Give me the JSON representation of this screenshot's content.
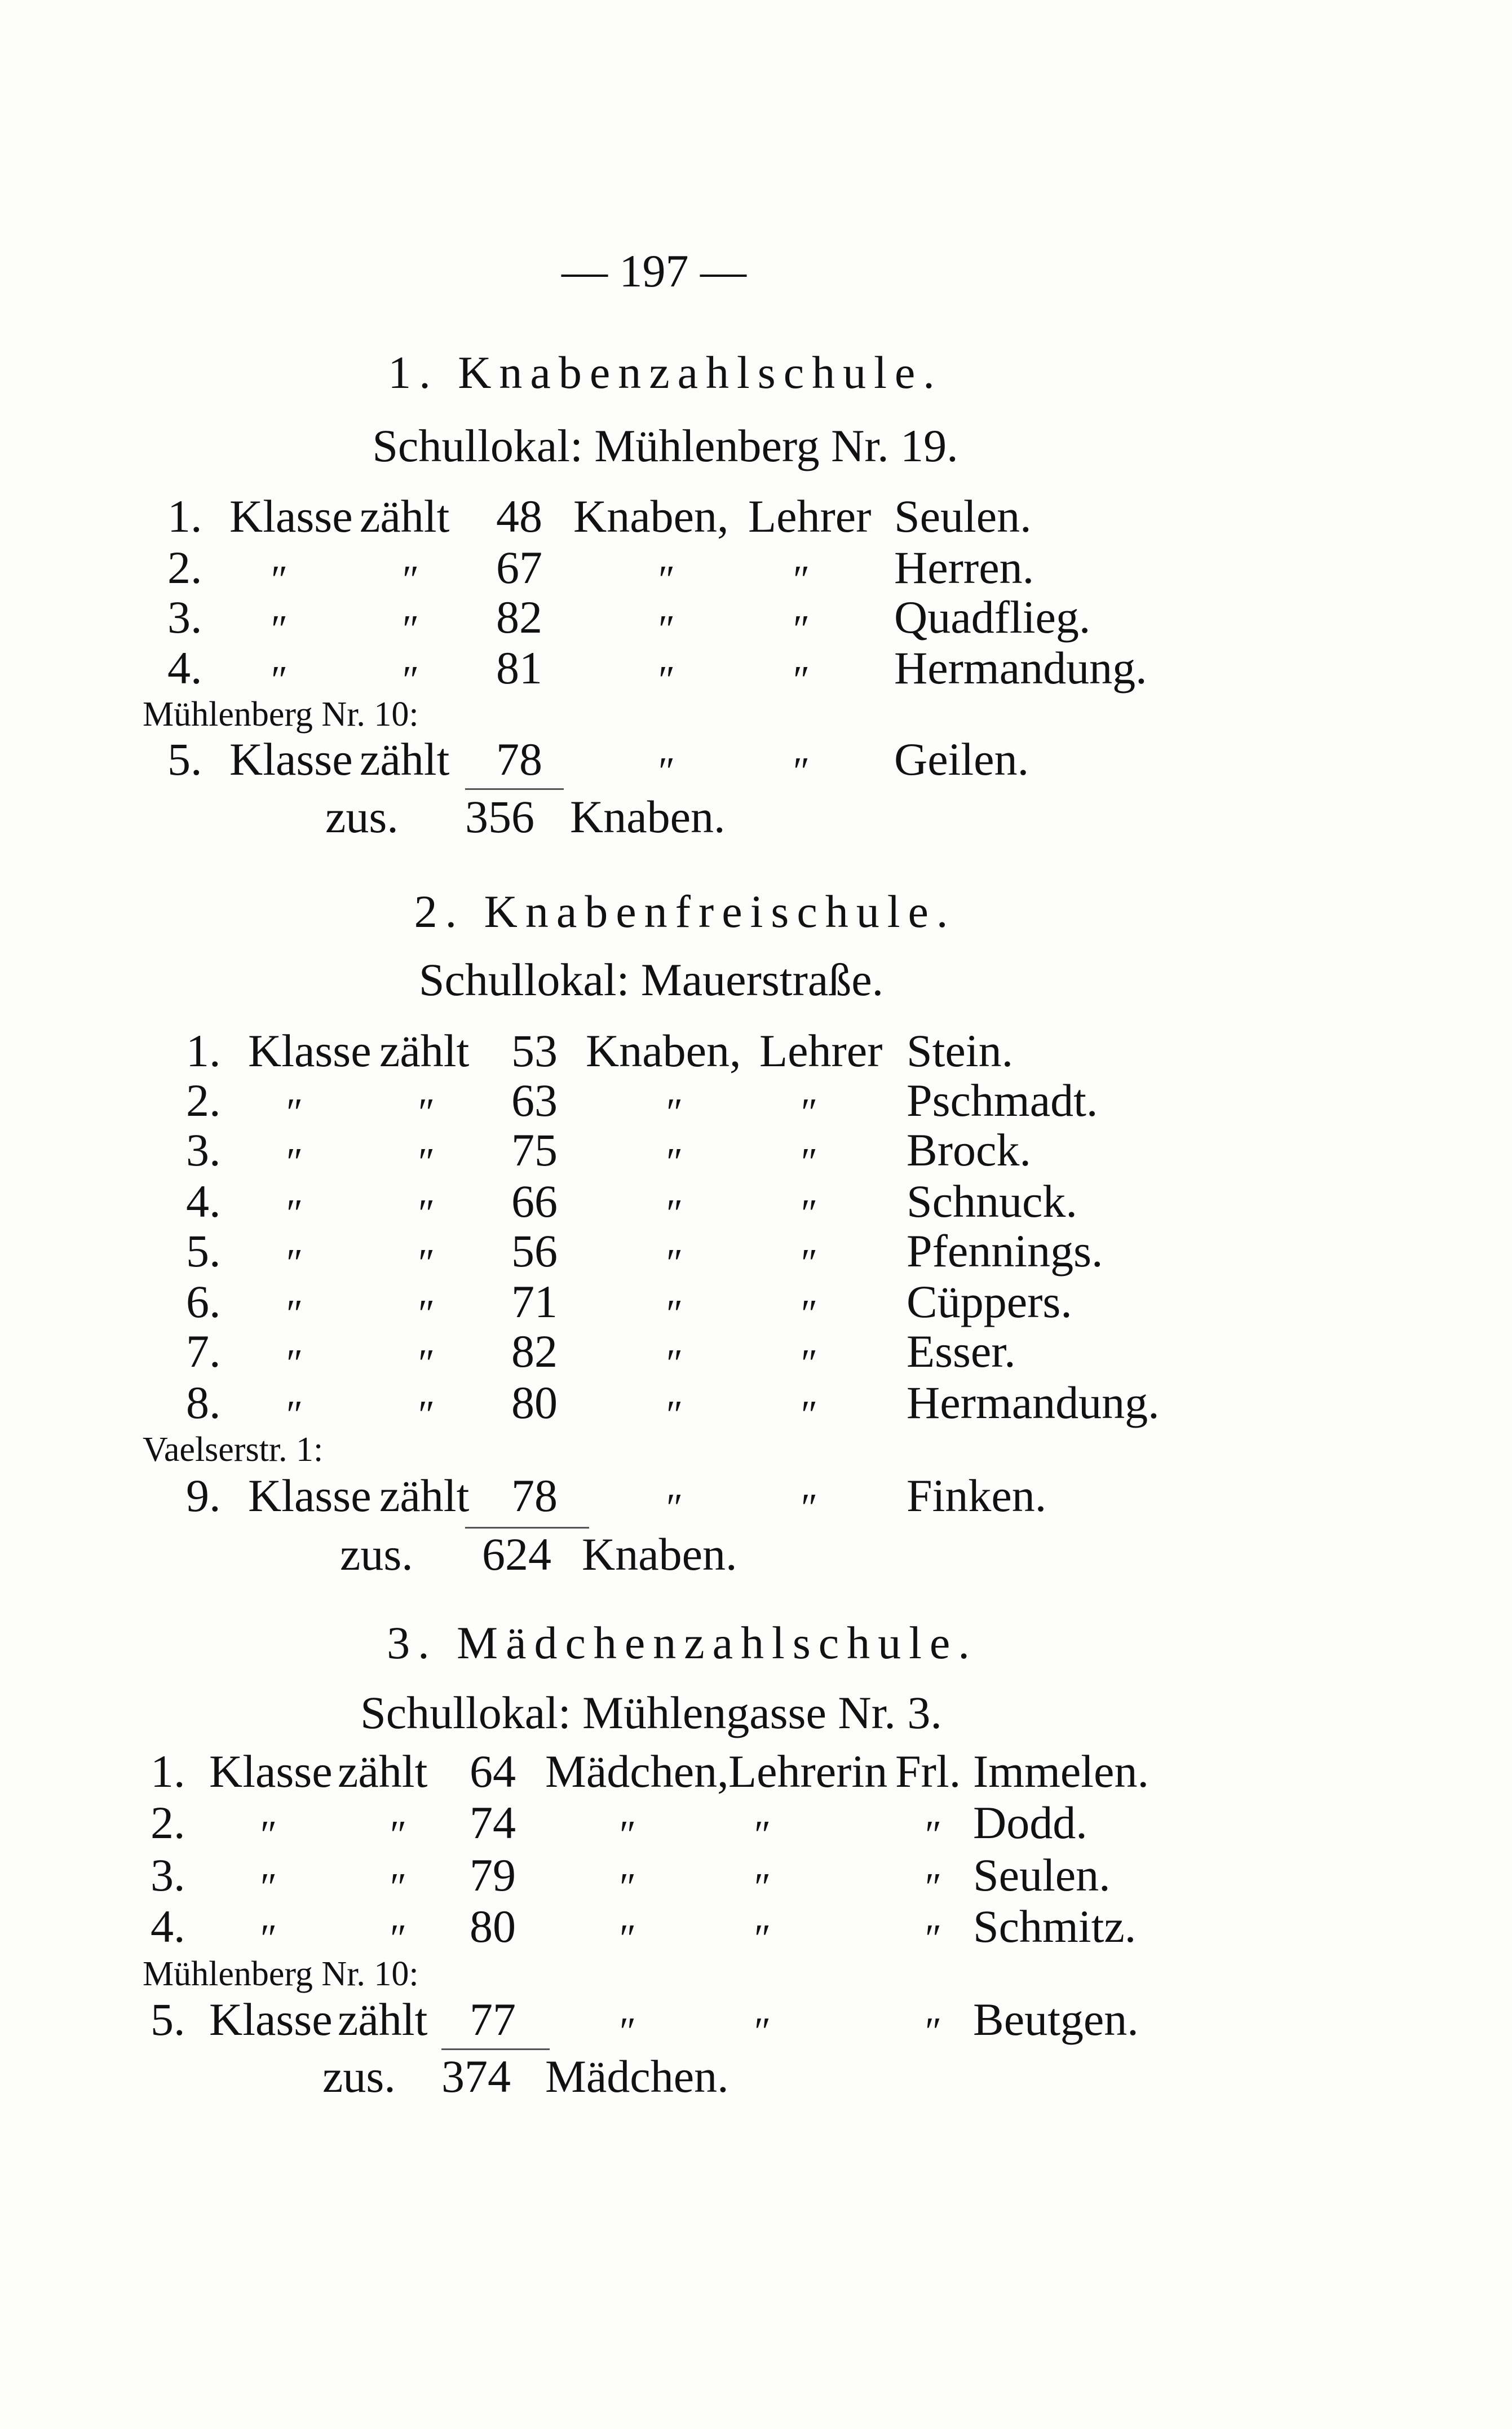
{
  "page_number": "— 197 —",
  "sections": [
    {
      "title": "1. Knabenzahlschule.",
      "location": "Schullokal: Mühlenberg Nr. 19.",
      "rows": [
        {
          "no": "1.",
          "klasse": "Klasse",
          "zaehlt": "zählt",
          "count": "48",
          "group": "Knaben,",
          "teacher": "Lehrer",
          "name": "Seulen."
        },
        {
          "no": "2.",
          "klasse": "″",
          "zaehlt": "″",
          "count": "67",
          "group": "″",
          "teacher": "″",
          "name": "Herren."
        },
        {
          "no": "3.",
          "klasse": "″",
          "zaehlt": "″",
          "count": "82",
          "group": "″",
          "teacher": "″",
          "name": "Quadflieg."
        },
        {
          "no": "4.",
          "klasse": "″",
          "zaehlt": "″",
          "count": "81",
          "group": "″",
          "teacher": "″",
          "name": "Hermandung."
        },
        {
          "no": "5.",
          "klasse": "Klasse",
          "zaehlt": "zählt",
          "count": "78",
          "group": "″",
          "teacher": "″",
          "name": "Geilen."
        }
      ],
      "annex_label": "Mühlenberg Nr. 10:",
      "total": {
        "label": "zus.",
        "count": "356",
        "unit": "Knaben."
      }
    },
    {
      "title": "2. Knabenfreischule.",
      "location": "Schullokal: Mauerstraße.",
      "rows": [
        {
          "no": "1.",
          "klasse": "Klasse",
          "zaehlt": "zählt",
          "count": "53",
          "group": "Knaben,",
          "teacher": "Lehrer",
          "name": "Stein."
        },
        {
          "no": "2.",
          "klasse": "″",
          "zaehlt": "″",
          "count": "63",
          "group": "″",
          "teacher": "″",
          "name": "Pschmadt."
        },
        {
          "no": "3.",
          "klasse": "″",
          "zaehlt": "″",
          "count": "75",
          "group": "″",
          "teacher": "″",
          "name": "Brock."
        },
        {
          "no": "4.",
          "klasse": "″",
          "zaehlt": "″",
          "count": "66",
          "group": "″",
          "teacher": "″",
          "name": "Schnuck."
        },
        {
          "no": "5.",
          "klasse": "″",
          "zaehlt": "″",
          "count": "56",
          "group": "″",
          "teacher": "″",
          "name": "Pfennings."
        },
        {
          "no": "6.",
          "klasse": "″",
          "zaehlt": "″",
          "count": "71",
          "group": "″",
          "teacher": "″",
          "name": "Cüppers."
        },
        {
          "no": "7.",
          "klasse": "″",
          "zaehlt": "″",
          "count": "82",
          "group": "″",
          "teacher": "″",
          "name": "Esser."
        },
        {
          "no": "8.",
          "klasse": "″",
          "zaehlt": "″",
          "count": "80",
          "group": "″",
          "teacher": "″",
          "name": "Hermandung."
        },
        {
          "no": "9.",
          "klasse": "Klasse",
          "zaehlt": "zählt",
          "count": "78",
          "group": "″",
          "teacher": "″",
          "name": "Finken."
        }
      ],
      "annex_label": "Vaelserstr. 1:",
      "total": {
        "label": "zus.",
        "count": "624",
        "unit": "Knaben."
      }
    },
    {
      "title": "3. Mädchenzahlschule.",
      "location": "Schullokal: Mühlengasse Nr. 3.",
      "rows": [
        {
          "no": "1.",
          "klasse": "Klasse",
          "zaehlt": "zählt",
          "count": "64",
          "group": "Mädchen,",
          "teacher": "Lehrerin",
          "title": "Frl.",
          "name": "Immelen."
        },
        {
          "no": "2.",
          "klasse": "″",
          "zaehlt": "″",
          "count": "74",
          "group": "″",
          "teacher": "″",
          "title": "″",
          "name": "Dodd."
        },
        {
          "no": "3.",
          "klasse": "″",
          "zaehlt": "″",
          "count": "79",
          "group": "″",
          "teacher": "″",
          "title": "″",
          "name": "Seulen."
        },
        {
          "no": "4.",
          "klasse": "″",
          "zaehlt": "″",
          "count": "80",
          "group": "″",
          "teacher": "″",
          "title": "″",
          "name": "Schmitz."
        },
        {
          "no": "5.",
          "klasse": "Klasse",
          "zaehlt": "zählt",
          "count": "77",
          "group": "″",
          "teacher": "″",
          "title": "″",
          "name": "Beutgen."
        }
      ],
      "annex_label": "Mühlenberg Nr. 10:",
      "total": {
        "label": "zus.",
        "count": "374",
        "unit": "Mädchen."
      }
    }
  ]
}
